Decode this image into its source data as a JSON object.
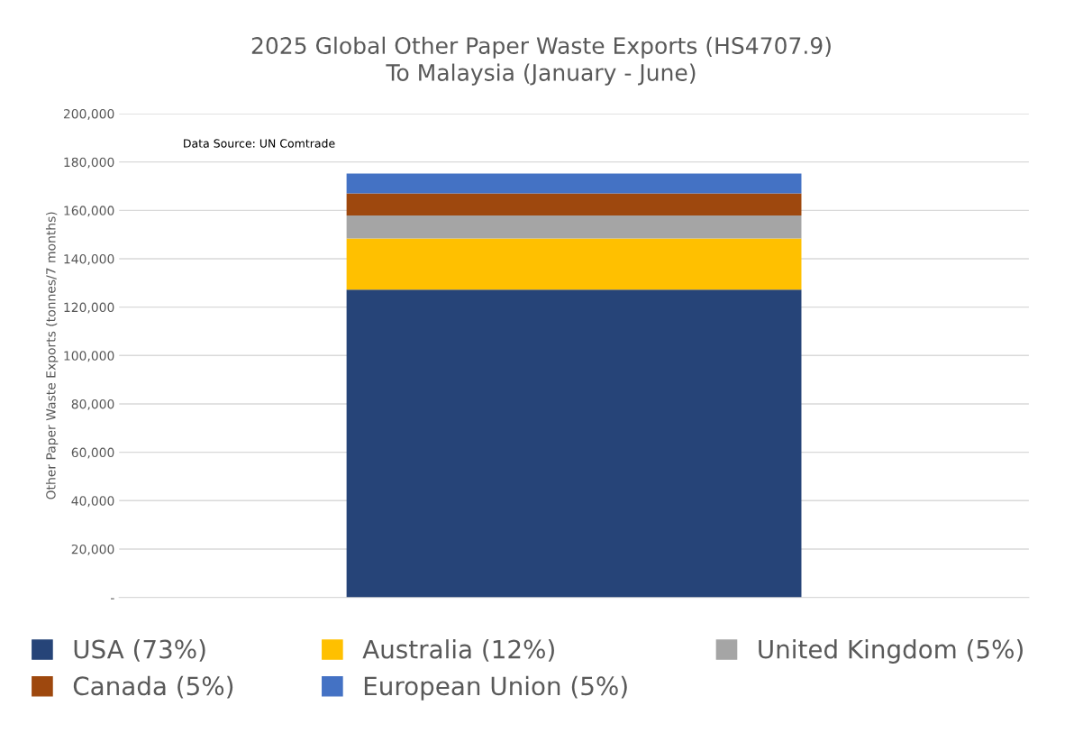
{
  "chart_data": {
    "type": "bar",
    "title": "2025 Global Other Paper Waste Exports (HS4707.9)\nTo Malaysia (January - June)",
    "ylabel": "Other Paper Waste Exports (tonnes/7 months)",
    "categories": [
      null
    ],
    "stacked": true,
    "series": [
      {
        "name": "USA (73%)",
        "color": "#264478",
        "values": [
          127200
        ]
      },
      {
        "name": "Australia (12%)",
        "color": "#ffc000",
        "values": [
          21200
        ]
      },
      {
        "name": "United Kingdom (5%)",
        "color": "#a5a5a5",
        "values": [
          9500
        ]
      },
      {
        "name": "Canada (5%)",
        "color": "#9e480e",
        "values": [
          9100
        ]
      },
      {
        "name": "European Union (5%)",
        "color": "#4472c4",
        "values": [
          8200
        ]
      }
    ],
    "ylim": [
      0,
      200000
    ],
    "yticks": [
      {
        "value": 0,
        "label": "-"
      },
      {
        "value": 20000,
        "label": "20,000"
      },
      {
        "value": 40000,
        "label": "40,000"
      },
      {
        "value": 60000,
        "label": "60,000"
      },
      {
        "value": 80000,
        "label": "80,000"
      },
      {
        "value": 100000,
        "label": "100,000"
      },
      {
        "value": 120000,
        "label": "120,000"
      },
      {
        "value": 140000,
        "label": "140,000"
      },
      {
        "value": 160000,
        "label": "160,000"
      },
      {
        "value": 180000,
        "label": "180,000"
      },
      {
        "value": 200000,
        "label": "200,000"
      }
    ],
    "grid": "y",
    "legend": "bottom",
    "annotations": [
      "Data Source: UN Comtrade"
    ]
  }
}
